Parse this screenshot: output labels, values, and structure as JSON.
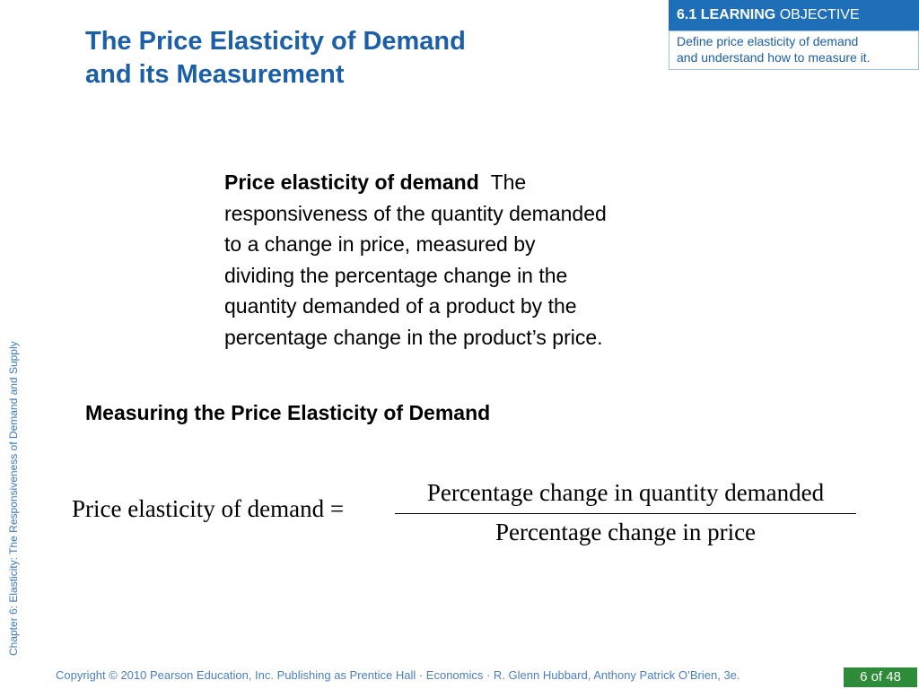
{
  "title": {
    "line1": "The Price Elasticity of Demand",
    "line2": "and its Measurement"
  },
  "learning_objective": {
    "number_bold": "6.1 LEARNING",
    "label": "OBJECTIVE",
    "desc_line1": "Define price elasticity of demand",
    "desc_line2": "and understand how to measure it."
  },
  "side_label": "Chapter 6: Elasticity: The Responsiveness of Demand and Supply",
  "definition": {
    "term": "Price elasticity of demand",
    "line1_rest": "The",
    "line2": "responsiveness of the quantity demanded",
    "line3": "to a change in price, measured by",
    "line4": "dividing the percentage change in the",
    "line5": "quantity demanded of a product by the",
    "line6": "percentage change in the product’s price."
  },
  "subheading": "Measuring the Price Elasticity of Demand",
  "formula": {
    "lhs": "Price elasticity of demand =",
    "numerator": "Percentage change in quantity demanded",
    "denominator": "Percentage change in price"
  },
  "footer": {
    "copyright": "Copyright © 2010 Pearson Education, Inc. Publishing as Prentice Hall · Economics · R. Glenn Hubbard, Anthony Patrick O’Brien, 3e.",
    "page": "6 of 48"
  },
  "colors": {
    "title": "#1a5fa8",
    "header_bg": "#1f6fb8",
    "page_badge": "#2e8b3a"
  }
}
